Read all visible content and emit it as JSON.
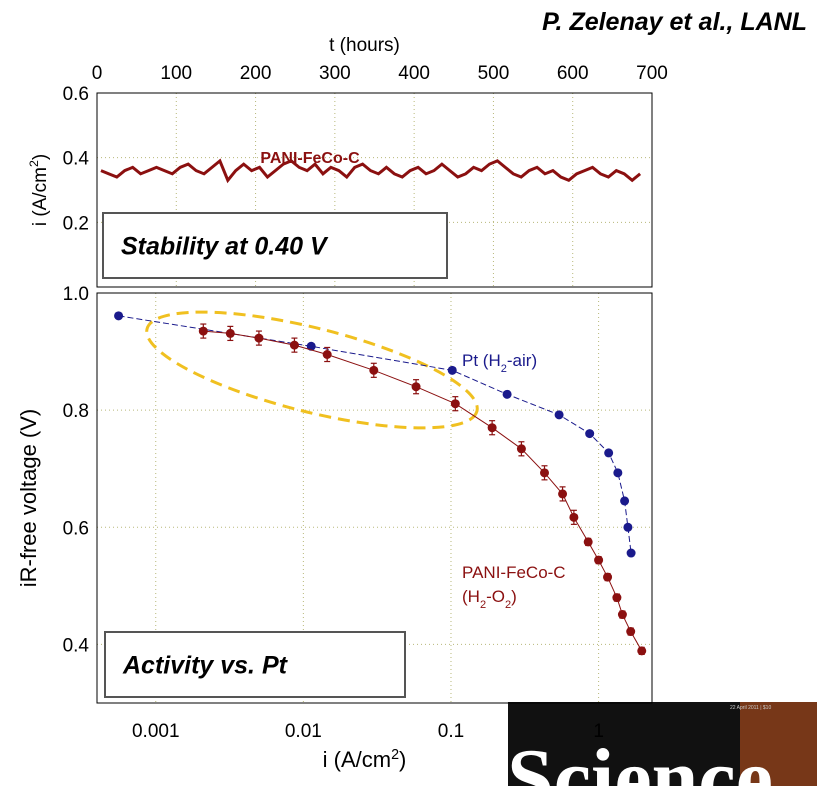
{
  "credit": "P. Zelenay et al., LANL",
  "logo": {
    "text": "Science",
    "date": "22 April 2011 | $10"
  },
  "chart_data": [
    {
      "type": "line",
      "x_label": "t (hours)",
      "y_label": [
        "i (A/cm",
        "2",
        ")"
      ],
      "annotation": "Stability at 0.40 V",
      "xlim": [
        0,
        700
      ],
      "xticks": [
        0,
        100,
        200,
        300,
        400,
        500,
        600,
        700
      ],
      "ylim": [
        0,
        0.6
      ],
      "yticks": [
        0.2,
        0.4,
        0.6
      ],
      "grid": true,
      "series": [
        {
          "name": "PANI-FeCo-C",
          "color": "#8b1010",
          "x": [
            5,
            15,
            25,
            35,
            45,
            55,
            65,
            75,
            85,
            95,
            105,
            115,
            125,
            135,
            145,
            155,
            165,
            175,
            185,
            195,
            205,
            215,
            225,
            235,
            245,
            255,
            265,
            275,
            285,
            295,
            305,
            315,
            325,
            335,
            345,
            355,
            365,
            375,
            385,
            395,
            405,
            415,
            425,
            435,
            445,
            455,
            465,
            475,
            485,
            495,
            505,
            515,
            525,
            535,
            545,
            555,
            565,
            575,
            585,
            595,
            605,
            615,
            625,
            635,
            645,
            655,
            665,
            675,
            685
          ],
          "values": [
            0.36,
            0.35,
            0.34,
            0.36,
            0.37,
            0.35,
            0.36,
            0.37,
            0.36,
            0.35,
            0.37,
            0.38,
            0.36,
            0.35,
            0.37,
            0.39,
            0.33,
            0.36,
            0.38,
            0.36,
            0.37,
            0.34,
            0.36,
            0.38,
            0.39,
            0.37,
            0.36,
            0.38,
            0.35,
            0.37,
            0.36,
            0.34,
            0.37,
            0.38,
            0.36,
            0.35,
            0.37,
            0.35,
            0.34,
            0.36,
            0.37,
            0.35,
            0.36,
            0.38,
            0.36,
            0.34,
            0.35,
            0.37,
            0.36,
            0.38,
            0.39,
            0.37,
            0.35,
            0.34,
            0.36,
            0.37,
            0.35,
            0.36,
            0.34,
            0.33,
            0.35,
            0.36,
            0.37,
            0.35,
            0.34,
            0.36,
            0.35,
            0.33,
            0.35
          ]
        }
      ]
    },
    {
      "type": "scatter",
      "x_label": [
        "i (A/cm",
        "2",
        ")"
      ],
      "y_label": "iR-free voltage (V)",
      "annotation": "Activity vs. Pt",
      "x_scale": "log",
      "xlim": [
        0.0004,
        2.3
      ],
      "xticks": [
        0.001,
        0.01,
        0.1,
        1
      ],
      "ylim": [
        0.3,
        1.0
      ],
      "yticks": [
        {
          "value": 0.4,
          "label": "0.4"
        },
        {
          "value": 0.6,
          "label": "0.6"
        },
        {
          "value": 0.8,
          "label": "0.8"
        },
        {
          "value": 1.0,
          "label": "1.0"
        }
      ],
      "grid": true,
      "series": [
        {
          "label": [
            "Pt (H",
            "2",
            "-air)"
          ],
          "color": "#1a1a8c",
          "x": [
            0.00056,
            0.0113,
            0.102,
            0.24,
            0.54,
            0.87,
            1.17,
            1.35,
            1.5,
            1.58,
            1.66
          ],
          "values": [
            0.961,
            0.909,
            0.868,
            0.827,
            0.792,
            0.76,
            0.727,
            0.693,
            0.645,
            0.6,
            0.556
          ]
        },
        {
          "label": [
            "PANI-FeCo-C",
            "(H",
            "2",
            "-O",
            "2",
            ")"
          ],
          "color": "#8b1010",
          "x": [
            0.0021,
            0.0032,
            0.005,
            0.0087,
            0.0145,
            0.03,
            0.058,
            0.107,
            0.19,
            0.3,
            0.43,
            0.57,
            0.68,
            0.85,
            1.0,
            1.15,
            1.33,
            1.45,
            1.65,
            1.96
          ],
          "values": [
            0.935,
            0.931,
            0.923,
            0.911,
            0.895,
            0.868,
            0.84,
            0.811,
            0.77,
            0.734,
            0.693,
            0.657,
            0.617,
            0.575,
            0.544,
            0.515,
            0.48,
            0.451,
            0.422,
            0.389
          ],
          "errors": [
            0.012,
            0.012,
            0.012,
            0.012,
            0.012,
            0.012,
            0.012,
            0.012,
            0.012,
            0.012,
            0.012,
            0.012,
            0.012,
            0.006,
            0.006,
            0.006,
            0.006,
            0.006,
            0.006,
            0.006
          ]
        }
      ]
    }
  ]
}
